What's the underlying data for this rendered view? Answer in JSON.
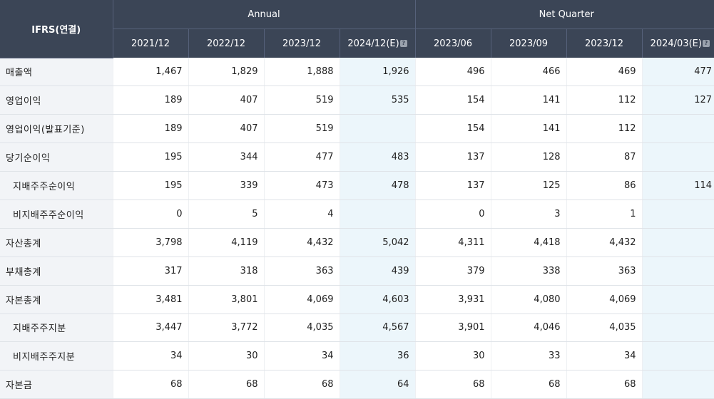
{
  "header": {
    "corner": "IFRS(연결)",
    "group_annual": "Annual",
    "group_quarter": "Net Quarter",
    "estimate_icon": "help-icon",
    "periods": [
      "2021/12",
      "2022/12",
      "2023/12",
      "2024/12(E)",
      "2023/06",
      "2023/09",
      "2023/12",
      "2024/03(E)"
    ]
  },
  "rows": [
    {
      "label": "매출액",
      "values": [
        "1,467",
        "1,829",
        "1,888",
        "1,926",
        "496",
        "466",
        "469",
        "477"
      ]
    },
    {
      "label": "영업이익",
      "values": [
        "189",
        "407",
        "519",
        "535",
        "154",
        "141",
        "112",
        "127"
      ]
    },
    {
      "label": "영업이익(발표기준)",
      "values": [
        "189",
        "407",
        "519",
        "",
        "154",
        "141",
        "112",
        ""
      ]
    },
    {
      "label": "당기순이익",
      "values": [
        "195",
        "344",
        "477",
        "483",
        "137",
        "128",
        "87",
        ""
      ]
    },
    {
      "label": "지배주주순이익",
      "values": [
        "195",
        "339",
        "473",
        "478",
        "137",
        "125",
        "86",
        "114"
      ]
    },
    {
      "label": "비지배주주순이익",
      "values": [
        "0",
        "5",
        "4",
        "",
        "0",
        "3",
        "1",
        ""
      ]
    },
    {
      "label": "자산총계",
      "values": [
        "3,798",
        "4,119",
        "4,432",
        "5,042",
        "4,311",
        "4,418",
        "4,432",
        ""
      ]
    },
    {
      "label": "부채총계",
      "values": [
        "317",
        "318",
        "363",
        "439",
        "379",
        "338",
        "363",
        ""
      ]
    },
    {
      "label": "자본총계",
      "values": [
        "3,481",
        "3,801",
        "4,069",
        "4,603",
        "3,931",
        "4,080",
        "4,069",
        ""
      ]
    },
    {
      "label": "지배주주지분",
      "values": [
        "3,447",
        "3,772",
        "4,035",
        "4,567",
        "3,901",
        "4,046",
        "4,035",
        ""
      ]
    },
    {
      "label": "비지배주주지분",
      "values": [
        "34",
        "30",
        "34",
        "36",
        "30",
        "33",
        "34",
        ""
      ]
    },
    {
      "label": "자본금",
      "values": [
        "68",
        "68",
        "68",
        "64",
        "68",
        "68",
        "68",
        ""
      ]
    }
  ]
}
